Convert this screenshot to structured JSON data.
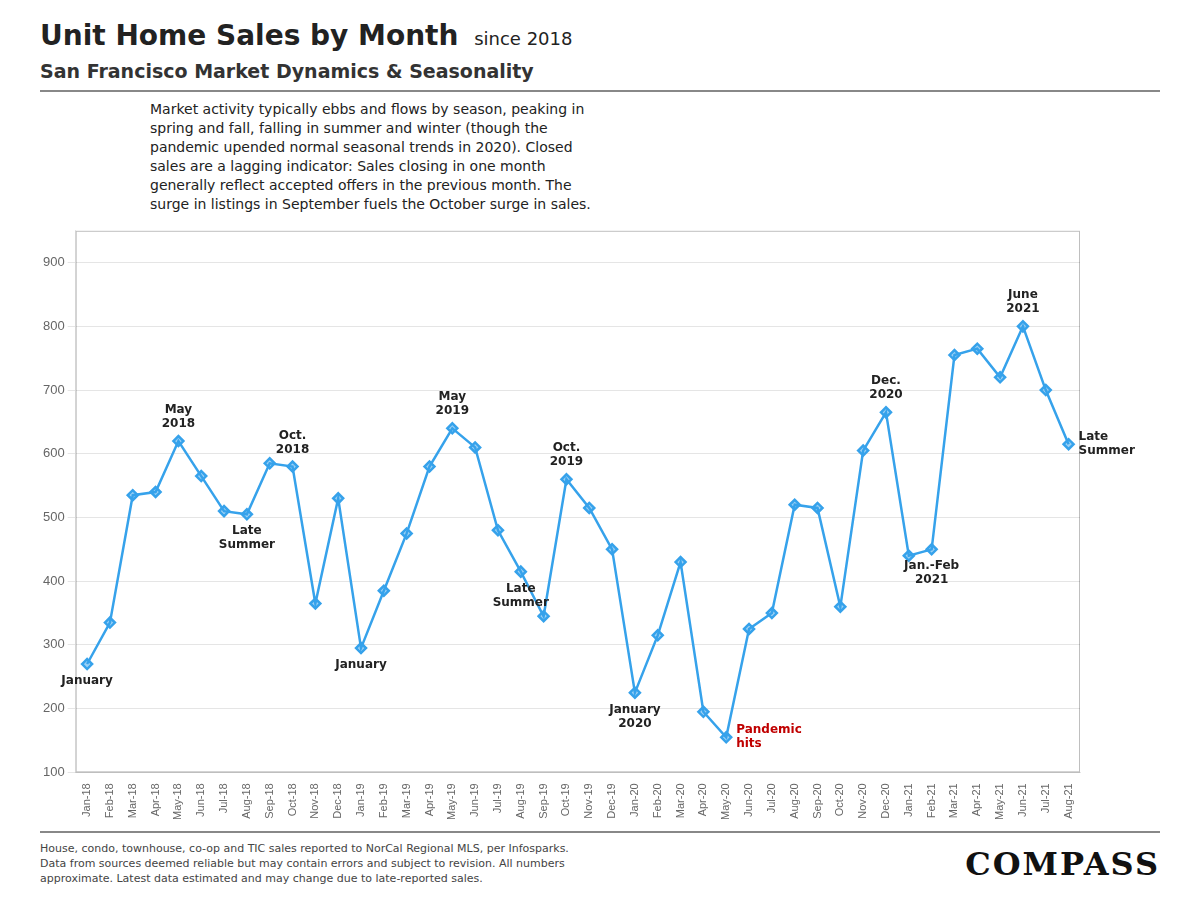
{
  "chart_data": {
    "type": "line",
    "title": [
      "Unit Home Sales by Month",
      " since 2018"
    ],
    "subtitle": "San Francisco Market Dynamics & Seasonality",
    "description": "Market activity typically ebbs and flows by season, peaking in\nspring and fall, falling in summer and winter (though the\npandemic upended normal seasonal trends in 2020). Closed\nsales are a lagging indicator: Sales closing in one month\ngenerally reflect accepted offers in the previous month. The\nsurge in listings in September fuels the October surge in sales.",
    "footnote": "House, condo, townhouse, co-op and TIC sales reported to NorCal Regional MLS, per Infosparks.\nData from sources deemed reliable but may contain errors and subject to revision. All numbers\napproximate. Latest data estimated and may change due to late-reported sales.",
    "logo": "COMPASS",
    "categories": [
      "Jan-18",
      "Feb-18",
      "Mar-18",
      "Apr-18",
      "May-18",
      "Jun-18",
      "Jul-18",
      "Aug-18",
      "Sep-18",
      "Oct-18",
      "Nov-18",
      "Dec-18",
      "Jan-19",
      "Feb-19",
      "Mar-19",
      "Apr-19",
      "May-19",
      "Jun-19",
      "Jul-19",
      "Aug-19",
      "Sep-19",
      "Oct-19",
      "Nov-19",
      "Dec-19",
      "Jan-20",
      "Feb-20",
      "Mar-20",
      "Apr-20",
      "May-20",
      "Jun-20",
      "Jul-20",
      "Aug-20",
      "Sep-20",
      "Oct-20",
      "Nov-20",
      "Dec-20",
      "Jan-21",
      "Feb-21",
      "Mar-21",
      "Apr-21",
      "May-21",
      "Jun-21",
      "Jul-21",
      "Aug-21"
    ],
    "values": [
      270,
      335,
      535,
      540,
      620,
      565,
      510,
      505,
      585,
      580,
      365,
      530,
      295,
      385,
      475,
      580,
      640,
      610,
      480,
      415,
      345,
      560,
      515,
      450,
      225,
      315,
      430,
      195,
      155,
      325,
      350,
      520,
      515,
      360,
      605,
      665,
      440,
      450,
      755,
      765,
      720,
      800,
      700,
      615
    ],
    "marker": "diamond",
    "ylim": [
      100,
      950
    ],
    "yticks": [
      100,
      200,
      300,
      400,
      500,
      600,
      700,
      800,
      900
    ],
    "grid": true,
    "annotations": [
      {
        "text": "January",
        "x": "Jan-18",
        "y": 270
      },
      {
        "text": "May\n2018",
        "x": "May-18",
        "y": 620
      },
      {
        "text": "Late\nSummer",
        "x": "Aug-18",
        "y": 505
      },
      {
        "text": "Oct.\n2018",
        "x": "Oct-18",
        "y": 580
      },
      {
        "text": "January",
        "x": "Jan-19",
        "y": 295
      },
      {
        "text": "May\n2019",
        "x": "May-19",
        "y": 640
      },
      {
        "text": "Late\nSummer",
        "x": "Aug-19",
        "y": 415
      },
      {
        "text": "Oct.\n2019",
        "x": "Oct-19",
        "y": 560
      },
      {
        "text": "January\n2020",
        "x": "Jan-20",
        "y": 225
      },
      {
        "text": "Dec.\n2020",
        "x": "Dec-20",
        "y": 665
      },
      {
        "text": "Jan.-Feb\n2021",
        "x": "Feb-21",
        "y": 450
      },
      {
        "text": "June\n2021",
        "x": "Jun-21",
        "y": 800
      },
      {
        "text": "Late\nSummer",
        "x": "Aug-21",
        "y": 615
      },
      {
        "text": "Pandemic\nhits",
        "x": "May-20",
        "y": 155,
        "color": "#c00000"
      }
    ]
  }
}
